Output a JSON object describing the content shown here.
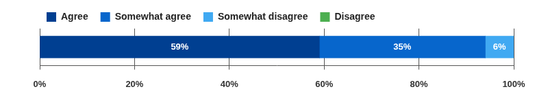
{
  "chart_data": {
    "type": "bar",
    "orientation": "horizontal",
    "stacked": true,
    "categories": [
      null
    ],
    "series": [
      {
        "name": "Agree",
        "color": "#003f91",
        "values": [
          59
        ],
        "value_labels": [
          "59%"
        ]
      },
      {
        "name": "Somewhat agree",
        "color": "#0766cc",
        "values": [
          35
        ],
        "value_labels": [
          "35%"
        ]
      },
      {
        "name": "Somewhat disagree",
        "color": "#40a9f2",
        "values": [
          6
        ],
        "value_labels": [
          "6%"
        ]
      },
      {
        "name": "Disagree",
        "color": "#4caf50",
        "values": [
          0
        ],
        "value_labels": [
          null
        ]
      }
    ],
    "xlim": [
      0,
      100
    ],
    "xticks": [
      {
        "value": 0,
        "label": "0%"
      },
      {
        "value": 20,
        "label": "20%"
      },
      {
        "value": 40,
        "label": "40%"
      },
      {
        "value": 60,
        "label": "60%"
      },
      {
        "value": 80,
        "label": "80%"
      },
      {
        "value": 100,
        "label": "100%"
      }
    ],
    "grid": true,
    "legend": "top-left",
    "data_labels": true,
    "tick_labels": "x"
  }
}
